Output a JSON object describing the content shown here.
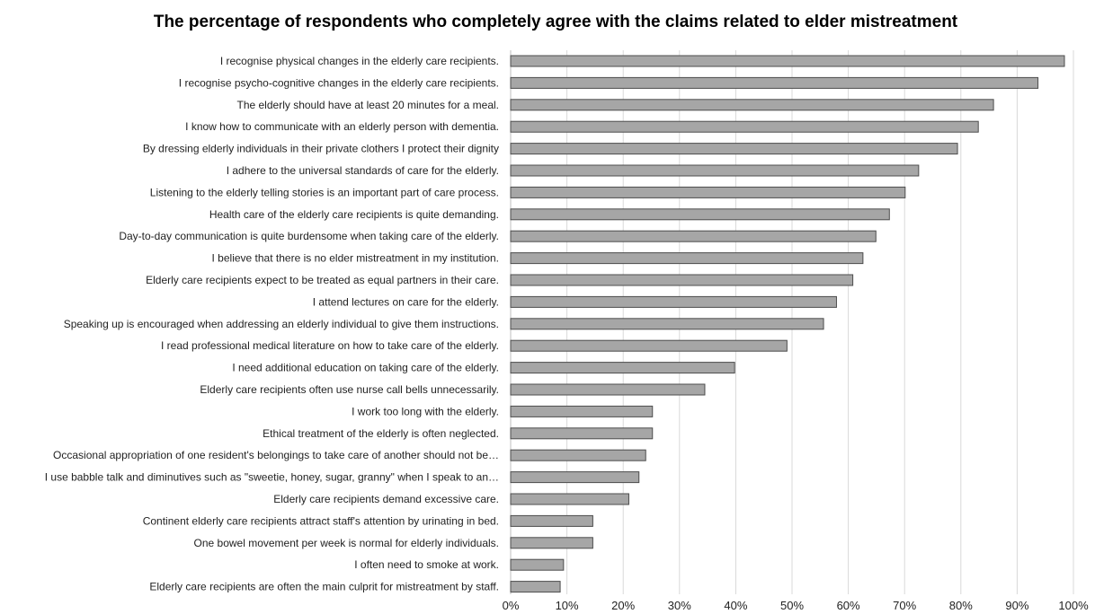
{
  "chart_data": {
    "type": "bar",
    "orientation": "horizontal",
    "title": "The percentage of respondents who completely agree with the claims related to elder mistreatment",
    "xlabel": "",
    "ylabel": "",
    "xlim": [
      0,
      100
    ],
    "x_ticks": [
      "0%",
      "10%",
      "20%",
      "30%",
      "40%",
      "50%",
      "60%",
      "70%",
      "80%",
      "90%",
      "100%"
    ],
    "grid": true,
    "legend": "none",
    "bar_color": "#a6a6a6",
    "bar_edge_color": "#4d4d4d",
    "categories": [
      "I recognise physical changes in the elderly care recipients.",
      "I recognise psycho-cognitive changes in the elderly care recipients.",
      "The elderly should have at least 20 minutes for a meal.",
      "I know how to communicate with an elderly person with dementia.",
      "By dressing elderly individuals in their private clothers I protect their dignity",
      "I adhere to the universal standards of care for the elderly.",
      "Listening to the elderly telling stories is an important part of care process.",
      "Health care of the elderly care recipients is quite demanding.",
      "Day-to-day communication is quite burdensome when taking care of the elderly.",
      "I believe that there is no elder mistreatment in my institution.",
      "Elderly care recipients expect to be treated as equal partners in their care.",
      "I attend lectures on care for the elderly.",
      "Speaking up is encouraged when addressing an elderly individual to give them instructions.",
      "I read professional medical literature on how to take care of the elderly.",
      "I need additional education on taking care of the elderly.",
      "Elderly care recipients often use nurse call bells unnecessarily.",
      "I work too long with the elderly.",
      "Ethical treatment of the elderly is often neglected.",
      "Occasional appropriation of one resident's belongings to take care of another should not be…",
      "I use babble talk and diminutives such as \"sweetie, honey, sugar, granny\" when I speak to an…",
      "Elderly care recipients demand excessive care.",
      "Continent elderly care recipients attract staff's attention by urinating in bed.",
      "One bowel movement per week is normal for elderly individuals.",
      "I often need to smoke at work.",
      "Elderly care recipients are often the main culprit for mistreatment by staff."
    ],
    "values": [
      98.4,
      93.7,
      85.8,
      83.1,
      79.4,
      72.5,
      70.1,
      67.3,
      64.9,
      62.6,
      60.8,
      57.9,
      55.6,
      49.1,
      39.8,
      34.5,
      25.2,
      25.2,
      24.0,
      22.8,
      21.0,
      14.6,
      14.6,
      9.4,
      8.8
    ]
  }
}
